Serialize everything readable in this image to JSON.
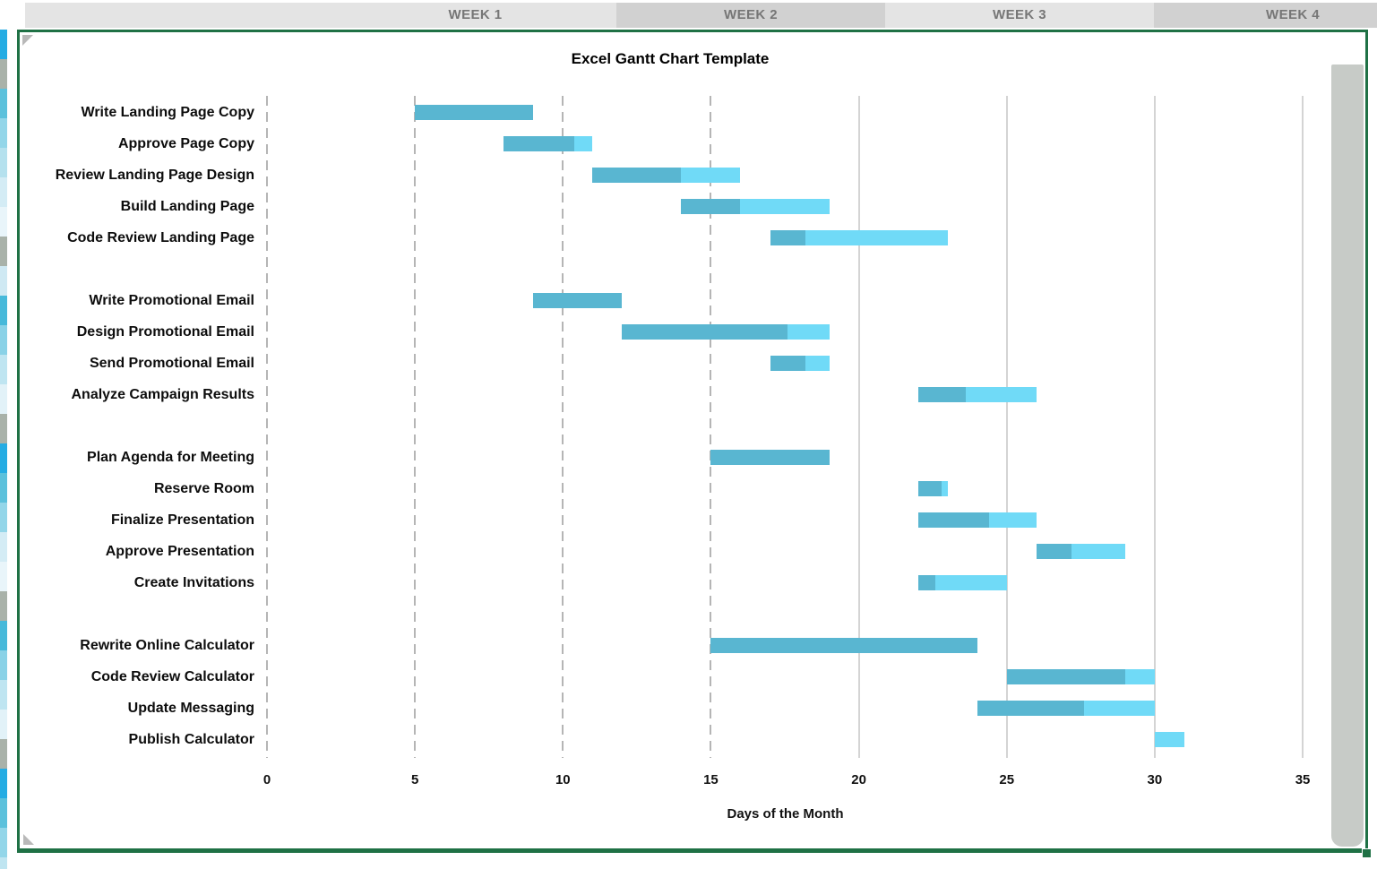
{
  "header": {
    "weeks": [
      "WEEK 1",
      "WEEK 2",
      "WEEK 3",
      "WEEK 4"
    ]
  },
  "colors": {
    "header_light": "#e4e4e4",
    "header_dark": "#d1d1d1",
    "selection_border_green": "#1f7145",
    "grid_dashed": "#b5b5b5",
    "grid_solid": "#d4d4d4",
    "scrollbar_gray": "#c7cbc7"
  },
  "left_strip_colors": [
    "#25ace3",
    "#a9b2a9",
    "#5cc1dc",
    "#93d6e9",
    "#b5e1ee",
    "#d4ecf5",
    "#e9f5fa",
    "#a9b2a9",
    "#cfe9f3",
    "#47b9da",
    "#8ad2e7",
    "#bfe5f1",
    "#e2f2f8",
    "#a9b2a9",
    "#25ace3",
    "#5cc1dc",
    "#93d6e9",
    "#d4ecf5",
    "#e9f5fa",
    "#a9b2a9",
    "#47b9da",
    "#8ad2e7",
    "#bfe5f1",
    "#e2f2f8",
    "#a9b2a9",
    "#25ace3",
    "#5cc1dc",
    "#93d6e9",
    "#bfe5f1"
  ],
  "chart_data": {
    "type": "bar",
    "variant": "gantt-horizontal",
    "title": "Excel Gantt Chart Template",
    "xlabel": "Days of the Month",
    "x_ticks": [
      0,
      5,
      10,
      15,
      20,
      25,
      30,
      35
    ],
    "xlim": [
      0,
      35
    ],
    "grid": "vertical",
    "dashed_gridlines_at": [
      0,
      5,
      10,
      15
    ],
    "solid_gridlines_at": [
      20,
      25,
      30,
      35
    ],
    "bar_colors": {
      "complete": "#59b6d1",
      "remaining": "#70daf7"
    },
    "groups": [
      {
        "tasks": [
          {
            "label": "Write Landing Page Copy",
            "start_day": 5,
            "end_day": 9,
            "pct_complete": 1.0
          },
          {
            "label": "Approve Page Copy",
            "start_day": 8,
            "end_day": 11,
            "pct_complete": 0.8
          },
          {
            "label": "Review Landing Page Design",
            "start_day": 11,
            "end_day": 16,
            "pct_complete": 0.6
          },
          {
            "label": "Build Landing Page",
            "start_day": 14,
            "end_day": 19,
            "pct_complete": 0.4
          },
          {
            "label": "Code Review Landing Page",
            "start_day": 17,
            "end_day": 23,
            "pct_complete": 0.2
          }
        ]
      },
      {
        "tasks": [
          {
            "label": "Write Promotional Email",
            "start_day": 9,
            "end_day": 12,
            "pct_complete": 1.0
          },
          {
            "label": "Design Promotional Email",
            "start_day": 12,
            "end_day": 19,
            "pct_complete": 0.8
          },
          {
            "label": "Send Promotional Email",
            "start_day": 17,
            "end_day": 19,
            "pct_complete": 0.6
          },
          {
            "label": "Analyze Campaign Results",
            "start_day": 22,
            "end_day": 26,
            "pct_complete": 0.4
          }
        ]
      },
      {
        "tasks": [
          {
            "label": "Plan Agenda for Meeting",
            "start_day": 15,
            "end_day": 19,
            "pct_complete": 1.0
          },
          {
            "label": "Reserve Room",
            "start_day": 22,
            "end_day": 23,
            "pct_complete": 0.8
          },
          {
            "label": "Finalize Presentation",
            "start_day": 22,
            "end_day": 26,
            "pct_complete": 0.6
          },
          {
            "label": "Approve Presentation",
            "start_day": 26,
            "end_day": 29,
            "pct_complete": 0.4
          },
          {
            "label": "Create Invitations",
            "start_day": 22,
            "end_day": 25,
            "pct_complete": 0.2
          }
        ]
      },
      {
        "tasks": [
          {
            "label": "Rewrite Online Calculator",
            "start_day": 15,
            "end_day": 24,
            "pct_complete": 1.0
          },
          {
            "label": "Code Review Calculator",
            "start_day": 25,
            "end_day": 30,
            "pct_complete": 0.8
          },
          {
            "label": "Update Messaging",
            "start_day": 24,
            "end_day": 30,
            "pct_complete": 0.6
          },
          {
            "label": "Publish Calculator",
            "start_day": 30,
            "end_day": 31,
            "pct_complete": 0.0
          }
        ]
      }
    ]
  }
}
